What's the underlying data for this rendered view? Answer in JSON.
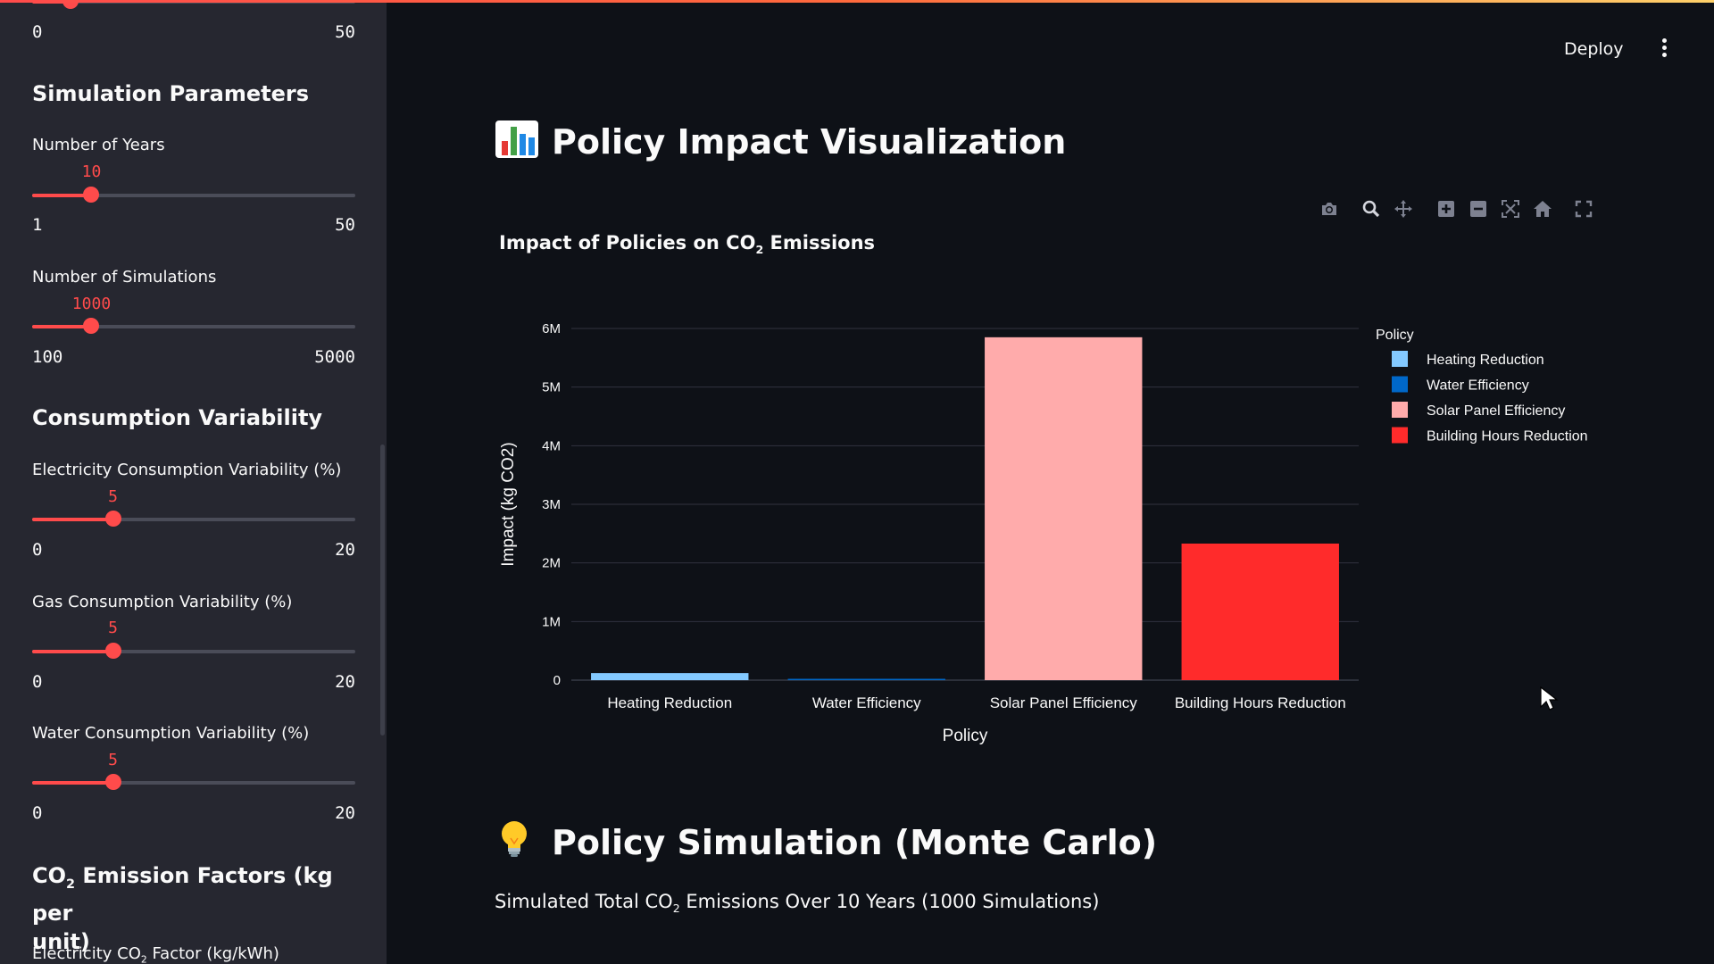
{
  "sidebar": {
    "top_slider": {
      "min": "0",
      "max": "50",
      "fraction": 0.12
    },
    "simulation_params": {
      "heading": "Simulation Parameters",
      "years": {
        "label": "Number of Years",
        "value": "10",
        "min": "1",
        "max": "50",
        "fraction": 0.1837
      },
      "sims": {
        "label": "Number of Simulations",
        "value": "1000",
        "min": "100",
        "max": "5000",
        "fraction": 0.1837
      }
    },
    "consumption_variability": {
      "heading": "Consumption Variability",
      "electricity": {
        "label": "Electricity Consumption Variability (%)",
        "value": "5",
        "min": "0",
        "max": "20",
        "fraction": 0.25
      },
      "gas": {
        "label": "Gas Consumption Variability (%)",
        "value": "5",
        "min": "0",
        "max": "20",
        "fraction": 0.25
      },
      "water": {
        "label": "Water Consumption Variability (%)",
        "value": "5",
        "min": "0",
        "max": "20",
        "fraction": 0.25
      }
    },
    "emission_factors": {
      "heading_prefix": "CO",
      "heading_sub": "2",
      "heading_line1_suffix": " Emission Factors (kg per",
      "heading_line2": "unit)",
      "electricity_label_prefix": "Electricity CO",
      "electricity_label_sub": "2",
      "electricity_label_suffix": " Factor (kg/kWh)"
    }
  },
  "header": {
    "deploy_label": "Deploy",
    "menu_icon": "kebab-menu-icon"
  },
  "section1": {
    "emoji_icon": "bar-chart-emoji-icon",
    "title": "Policy Impact Visualization"
  },
  "modebar": [
    "camera-icon",
    "zoom-icon",
    "pan-icon",
    "zoom-in-icon",
    "zoom-out-icon",
    "autoscale-icon",
    "reset-axes-home-icon",
    "fullscreen-icon"
  ],
  "chart_data": {
    "type": "bar",
    "title_prefix": "Impact of Policies on CO",
    "title_sub": "2",
    "title_suffix": " Emissions",
    "xlabel": "Policy",
    "ylabel": "Impact (kg CO2)",
    "categories": [
      "Heating Reduction",
      "Water Efficiency",
      "Solar Panel Efficiency",
      "Building Hours Reduction"
    ],
    "values": [
      120000,
      15000,
      5850000,
      2330000
    ],
    "colors": [
      "#83c9ff",
      "#0068c9",
      "#ffabab",
      "#ff2b2b"
    ],
    "ylim": [
      0,
      6000000
    ],
    "yticks": [
      0,
      1000000,
      2000000,
      3000000,
      4000000,
      5000000,
      6000000
    ],
    "ytick_labels": [
      "0",
      "1M",
      "2M",
      "3M",
      "4M",
      "5M",
      "6M"
    ],
    "grid": true,
    "legend_title": "Policy",
    "legend_position": "right"
  },
  "section2": {
    "emoji_icon": "light-bulb-emoji-icon",
    "title": "Policy Simulation (Monte Carlo)",
    "sim_prefix": "Simulated Total CO",
    "sim_sub": "2",
    "sim_suffix": " Emissions Over 10 Years (1000 Simulations)"
  }
}
